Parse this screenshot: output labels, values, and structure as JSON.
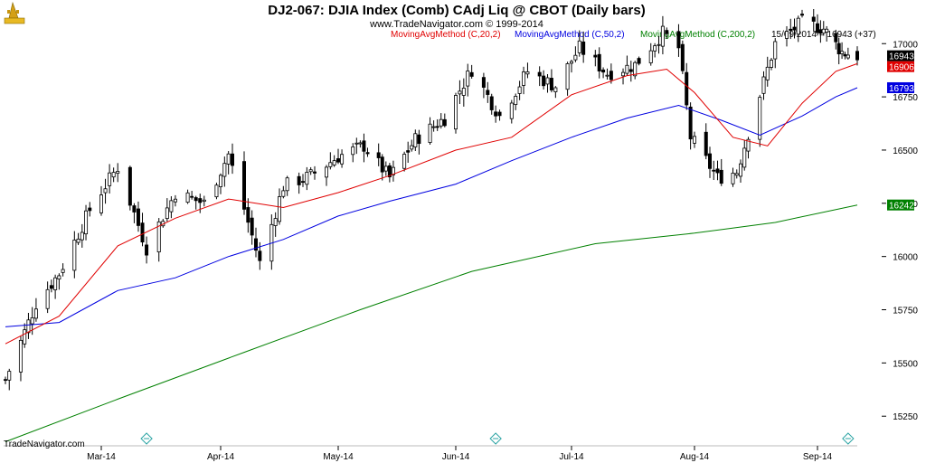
{
  "header": {
    "title": "DJ2-067:  DJIA Index (Comb) CAdj Liq @ CBOT  (Daily bars)",
    "subtitle": "www.TradeNavigator.com © 1999-2014",
    "legend": [
      {
        "label": "MovingAvgMethod (C,20,2)",
        "color": "#e00000"
      },
      {
        "label": "MovingAvgMethod (C,50,2)",
        "color": "#0000e0"
      },
      {
        "label": "MovingAvgMethod (C,200,2)",
        "color": "#008000"
      }
    ],
    "last_info": "15/09/2014 = 16943 (+37)"
  },
  "footer": {
    "brand": "TradeNavigator.com"
  },
  "price_tags": [
    {
      "label": "16943",
      "value": 16943,
      "bg": "#000000"
    },
    {
      "label": "16906",
      "value": 16906,
      "bg": "#e00000"
    },
    {
      "label": "16793",
      "value": 16793,
      "bg": "#0000e0"
    },
    {
      "label": "16242",
      "value": 16242,
      "bg": "#008000"
    }
  ],
  "chart_data": {
    "type": "candlestick",
    "ylim": [
      15200,
      17120
    ],
    "yticks": [
      15250,
      15500,
      15750,
      16000,
      16250,
      16500,
      16750,
      17000
    ],
    "xticks": [
      "Mar-14",
      "Apr-14",
      "May-14",
      "Jun-14",
      "Jul-14",
      "Aug-14",
      "Sep-14"
    ],
    "xtick_dates": [
      "2014-03-03",
      "2014-04-01",
      "2014-05-01",
      "2014-06-02",
      "2014-07-01",
      "2014-08-01",
      "2014-09-02"
    ],
    "close_path": [
      {
        "date": "2014-02-06",
        "close": 15420
      },
      {
        "date": "2014-02-10",
        "close": 15600
      },
      {
        "date": "2014-02-14",
        "close": 15780
      },
      {
        "date": "2014-02-20",
        "close": 15920
      },
      {
        "date": "2014-02-28",
        "close": 16220
      },
      {
        "date": "2014-03-07",
        "close": 16420
      },
      {
        "date": "2014-03-14",
        "close": 16040
      },
      {
        "date": "2014-03-21",
        "close": 16300
      },
      {
        "date": "2014-03-28",
        "close": 16250
      },
      {
        "date": "2014-04-03",
        "close": 16480
      },
      {
        "date": "2014-04-11",
        "close": 15970
      },
      {
        "date": "2014-04-17",
        "close": 16330
      },
      {
        "date": "2014-04-24",
        "close": 16380
      },
      {
        "date": "2014-05-01",
        "close": 16470
      },
      {
        "date": "2014-05-08",
        "close": 16520
      },
      {
        "date": "2014-05-15",
        "close": 16370
      },
      {
        "date": "2014-05-22",
        "close": 16550
      },
      {
        "date": "2014-05-30",
        "close": 16650
      },
      {
        "date": "2014-06-06",
        "close": 16880
      },
      {
        "date": "2014-06-13",
        "close": 16660
      },
      {
        "date": "2014-06-20",
        "close": 16870
      },
      {
        "date": "2014-06-27",
        "close": 16800
      },
      {
        "date": "2014-07-03",
        "close": 16980
      },
      {
        "date": "2014-07-10",
        "close": 16860
      },
      {
        "date": "2014-07-17",
        "close": 16900
      },
      {
        "date": "2014-07-24",
        "close": 17050
      },
      {
        "date": "2014-07-28",
        "close": 16980
      },
      {
        "date": "2014-07-31",
        "close": 16560
      },
      {
        "date": "2014-08-07",
        "close": 16370
      },
      {
        "date": "2014-08-12",
        "close": 16400
      },
      {
        "date": "2014-08-18",
        "close": 16760
      },
      {
        "date": "2014-08-22",
        "close": 17000
      },
      {
        "date": "2014-08-29",
        "close": 17100
      },
      {
        "date": "2014-09-04",
        "close": 17070
      },
      {
        "date": "2014-09-10",
        "close": 16960
      },
      {
        "date": "2014-09-15",
        "close": 16943
      }
    ],
    "ma20": [
      {
        "date": "2014-02-06",
        "value": 15590
      },
      {
        "date": "2014-02-20",
        "value": 15720
      },
      {
        "date": "2014-03-07",
        "value": 16050
      },
      {
        "date": "2014-03-21",
        "value": 16180
      },
      {
        "date": "2014-04-03",
        "value": 16270
      },
      {
        "date": "2014-04-17",
        "value": 16230
      },
      {
        "date": "2014-05-01",
        "value": 16300
      },
      {
        "date": "2014-05-15",
        "value": 16380
      },
      {
        "date": "2014-06-02",
        "value": 16500
      },
      {
        "date": "2014-06-16",
        "value": 16560
      },
      {
        "date": "2014-07-01",
        "value": 16760
      },
      {
        "date": "2014-07-15",
        "value": 16850
      },
      {
        "date": "2014-07-25",
        "value": 16880
      },
      {
        "date": "2014-08-01",
        "value": 16770
      },
      {
        "date": "2014-08-11",
        "value": 16560
      },
      {
        "date": "2014-08-20",
        "value": 16520
      },
      {
        "date": "2014-08-29",
        "value": 16720
      },
      {
        "date": "2014-09-08",
        "value": 16870
      },
      {
        "date": "2014-09-15",
        "value": 16906
      }
    ],
    "ma50": [
      {
        "date": "2014-02-06",
        "value": 15670
      },
      {
        "date": "2014-02-20",
        "value": 15690
      },
      {
        "date": "2014-03-07",
        "value": 15840
      },
      {
        "date": "2014-03-21",
        "value": 15900
      },
      {
        "date": "2014-04-03",
        "value": 16000
      },
      {
        "date": "2014-04-17",
        "value": 16080
      },
      {
        "date": "2014-05-01",
        "value": 16190
      },
      {
        "date": "2014-05-15",
        "value": 16260
      },
      {
        "date": "2014-06-02",
        "value": 16340
      },
      {
        "date": "2014-06-16",
        "value": 16450
      },
      {
        "date": "2014-07-01",
        "value": 16560
      },
      {
        "date": "2014-07-15",
        "value": 16650
      },
      {
        "date": "2014-07-28",
        "value": 16710
      },
      {
        "date": "2014-08-08",
        "value": 16640
      },
      {
        "date": "2014-08-18",
        "value": 16570
      },
      {
        "date": "2014-08-29",
        "value": 16660
      },
      {
        "date": "2014-09-08",
        "value": 16750
      },
      {
        "date": "2014-09-15",
        "value": 16793
      }
    ],
    "ma200": [
      {
        "date": "2014-02-06",
        "value": 15130
      },
      {
        "date": "2014-03-07",
        "value": 15330
      },
      {
        "date": "2014-04-07",
        "value": 15550
      },
      {
        "date": "2014-05-07",
        "value": 15750
      },
      {
        "date": "2014-06-06",
        "value": 15930
      },
      {
        "date": "2014-07-07",
        "value": 16060
      },
      {
        "date": "2014-08-01",
        "value": 16110
      },
      {
        "date": "2014-08-22",
        "value": 16160
      },
      {
        "date": "2014-09-15",
        "value": 16242
      }
    ]
  }
}
